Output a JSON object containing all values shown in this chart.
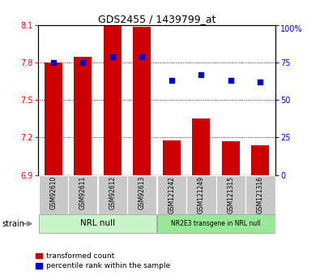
{
  "title": "GDS2455 / 1439799_at",
  "samples": [
    "GSM92610",
    "GSM92611",
    "GSM92612",
    "GSM92613",
    "GSM121242",
    "GSM121249",
    "GSM121315",
    "GSM121316"
  ],
  "bar_values": [
    7.8,
    7.85,
    8.1,
    8.09,
    7.18,
    7.35,
    7.17,
    7.14
  ],
  "percentile_values": [
    75,
    75,
    79,
    79,
    63,
    67,
    63,
    62
  ],
  "ylim_left": [
    6.9,
    8.1
  ],
  "yticks_left": [
    6.9,
    7.2,
    7.5,
    7.8,
    8.1
  ],
  "ylim_right": [
    0,
    100
  ],
  "yticks_right": [
    0,
    25,
    50,
    75,
    100
  ],
  "bar_color": "#cc0000",
  "scatter_color": "#0000cc",
  "bar_width": 0.6,
  "group1_label": "NRL null",
  "group2_label": "NR2E3 transgene in NRL null",
  "group1_color": "#c8f5c8",
  "group2_color": "#98e898",
  "tick_bg_color": "#c8c8c8",
  "legend_bar_label": "transformed count",
  "legend_scatter_label": "percentile rank within the sample",
  "strain_label": "strain"
}
